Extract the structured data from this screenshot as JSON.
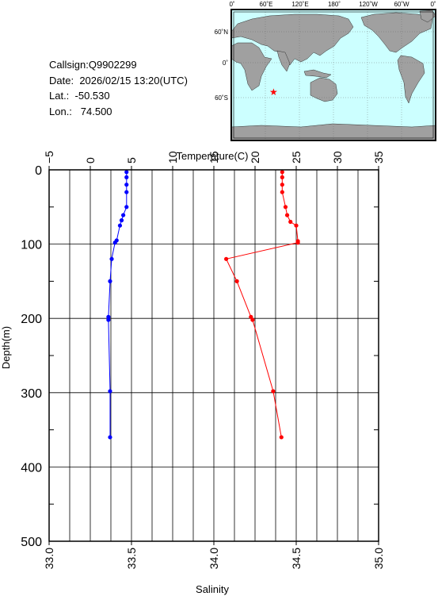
{
  "station": {
    "callsign_label": "Callsign:",
    "callsign": "Q9902299",
    "date_label": "Date:",
    "date": "2026/02/15 13:20(UTC)",
    "lat_label": "Lat.:",
    "lat": "-50.530",
    "lon_label": "Lon.:",
    "lon": "74.500"
  },
  "map": {
    "lon_labels": [
      "0˚",
      "60˚E",
      "120˚E",
      "180˚",
      "120˚W",
      "60˚W",
      "0˚"
    ],
    "lat_labels": [
      "60˚N",
      "0˚",
      "60˚S"
    ],
    "ocean_color": "#ccffff",
    "land_color": "#a0a0a0",
    "marker_color": "#ff0000",
    "marker": {
      "lon": 74.5,
      "lat": -50.53
    }
  },
  "chart_data": {
    "type": "line",
    "ylabel": "Depth(m)",
    "y_ticks": [
      "0",
      "100",
      "200",
      "300",
      "400",
      "500"
    ],
    "ylim": [
      0,
      500
    ],
    "y_inverted": true,
    "top_axis": {
      "label": "Temperature(C)",
      "ticks": [
        "−5",
        "0",
        "5",
        "10",
        "15",
        "20",
        "25",
        "30",
        "35"
      ],
      "range": [
        -5,
        35
      ]
    },
    "bottom_axis": {
      "label": "Salinity",
      "ticks": [
        "33.0",
        "33.5",
        "34.0",
        "34.5",
        "35.0"
      ],
      "range": [
        33.0,
        35.0
      ]
    },
    "grid": true,
    "series": [
      {
        "axis": "temperature",
        "color": "#ff0000",
        "points": [
          {
            "x": 23.3,
            "y": 3
          },
          {
            "x": 23.3,
            "y": 10
          },
          {
            "x": 23.3,
            "y": 20
          },
          {
            "x": 23.3,
            "y": 30
          },
          {
            "x": 23.7,
            "y": 50
          },
          {
            "x": 23.9,
            "y": 61
          },
          {
            "x": 24.3,
            "y": 70
          },
          {
            "x": 25.0,
            "y": 75
          },
          {
            "x": 25.2,
            "y": 96
          },
          {
            "x": 25.2,
            "y": 98
          },
          {
            "x": 16.5,
            "y": 120
          },
          {
            "x": 17.8,
            "y": 150
          },
          {
            "x": 19.5,
            "y": 198
          },
          {
            "x": 19.7,
            "y": 202
          },
          {
            "x": 22.2,
            "y": 298
          },
          {
            "x": 23.2,
            "y": 360
          }
        ]
      },
      {
        "axis": "salinity",
        "color": "#0000ff",
        "points": [
          {
            "x": 33.47,
            "y": 3
          },
          {
            "x": 33.47,
            "y": 10
          },
          {
            "x": 33.47,
            "y": 20
          },
          {
            "x": 33.47,
            "y": 30
          },
          {
            "x": 33.47,
            "y": 50
          },
          {
            "x": 33.45,
            "y": 61
          },
          {
            "x": 33.44,
            "y": 68
          },
          {
            "x": 33.43,
            "y": 75
          },
          {
            "x": 33.41,
            "y": 95
          },
          {
            "x": 33.4,
            "y": 98
          },
          {
            "x": 33.38,
            "y": 120
          },
          {
            "x": 33.37,
            "y": 150
          },
          {
            "x": 33.36,
            "y": 198
          },
          {
            "x": 33.36,
            "y": 202
          },
          {
            "x": 33.37,
            "y": 298
          },
          {
            "x": 33.37,
            "y": 360
          }
        ]
      }
    ]
  }
}
